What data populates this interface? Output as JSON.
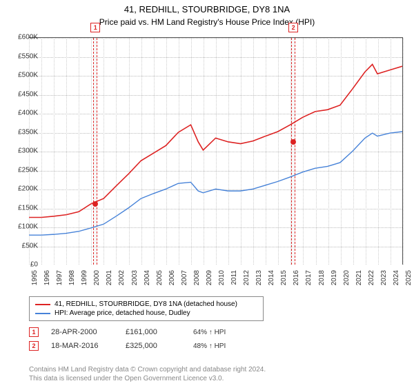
{
  "title_line1": "41, REDHILL, STOURBRIDGE, DY8 1NA",
  "title_line2": "Price paid vs. HM Land Registry's House Price Index (HPI)",
  "chart": {
    "type": "line",
    "y": {
      "min": 0,
      "max": 600000,
      "step": 50000,
      "labels": [
        "£0",
        "£50K",
        "£100K",
        "£150K",
        "£200K",
        "£250K",
        "£300K",
        "£350K",
        "£400K",
        "£450K",
        "£500K",
        "£550K",
        "£600K"
      ]
    },
    "x": {
      "min": 1995,
      "max": 2025,
      "labels": [
        "1995",
        "1996",
        "1997",
        "1998",
        "1999",
        "2000",
        "2001",
        "2002",
        "2003",
        "2004",
        "2005",
        "2006",
        "2007",
        "2008",
        "2009",
        "2010",
        "2011",
        "2012",
        "2013",
        "2014",
        "2015",
        "2016",
        "2017",
        "2018",
        "2019",
        "2020",
        "2021",
        "2022",
        "2023",
        "2024",
        "2025"
      ]
    },
    "series_property": {
      "name": "41, REDHILL, STOURBRIDGE, DY8 1NA (detached house)",
      "color": "#d22",
      "data": [
        [
          1995,
          125000
        ],
        [
          1996,
          125000
        ],
        [
          1997,
          128000
        ],
        [
          1998,
          132000
        ],
        [
          1999,
          140000
        ],
        [
          2000,
          161000
        ],
        [
          2001,
          175000
        ],
        [
          2002,
          208000
        ],
        [
          2003,
          240000
        ],
        [
          2004,
          275000
        ],
        [
          2005,
          295000
        ],
        [
          2006,
          315000
        ],
        [
          2007,
          350000
        ],
        [
          2008,
          370000
        ],
        [
          2008.6,
          325000
        ],
        [
          2009,
          303000
        ],
        [
          2010,
          335000
        ],
        [
          2011,
          325000
        ],
        [
          2012,
          320000
        ],
        [
          2013,
          327000
        ],
        [
          2014,
          340000
        ],
        [
          2015,
          352000
        ],
        [
          2016,
          370000
        ],
        [
          2017,
          390000
        ],
        [
          2018,
          405000
        ],
        [
          2019,
          410000
        ],
        [
          2020,
          422000
        ],
        [
          2021,
          465000
        ],
        [
          2022,
          510000
        ],
        [
          2022.6,
          530000
        ],
        [
          2023,
          505000
        ],
        [
          2024,
          515000
        ],
        [
          2025,
          525000
        ]
      ]
    },
    "series_hpi": {
      "name": "HPI: Average price, detached house, Dudley",
      "color": "#4682d8",
      "data": [
        [
          1995,
          78000
        ],
        [
          1996,
          78000
        ],
        [
          1997,
          80000
        ],
        [
          1998,
          83000
        ],
        [
          1999,
          88000
        ],
        [
          2000,
          97000
        ],
        [
          2001,
          107000
        ],
        [
          2002,
          128000
        ],
        [
          2003,
          150000
        ],
        [
          2004,
          175000
        ],
        [
          2005,
          188000
        ],
        [
          2006,
          200000
        ],
        [
          2007,
          215000
        ],
        [
          2008,
          218000
        ],
        [
          2008.6,
          195000
        ],
        [
          2009,
          190000
        ],
        [
          2010,
          200000
        ],
        [
          2011,
          195000
        ],
        [
          2012,
          195000
        ],
        [
          2013,
          200000
        ],
        [
          2014,
          210000
        ],
        [
          2015,
          220000
        ],
        [
          2016,
          232000
        ],
        [
          2017,
          245000
        ],
        [
          2018,
          255000
        ],
        [
          2019,
          260000
        ],
        [
          2020,
          270000
        ],
        [
          2021,
          300000
        ],
        [
          2022,
          335000
        ],
        [
          2022.6,
          348000
        ],
        [
          2023,
          340000
        ],
        [
          2024,
          348000
        ],
        [
          2025,
          352000
        ]
      ]
    },
    "markers": [
      {
        "n": "1",
        "year": 2000.33,
        "price": 161000
      },
      {
        "n": "2",
        "year": 2016.21,
        "price": 325000
      }
    ],
    "background_color": "#ffffff",
    "grid_color": "#cccccc"
  },
  "legend": {
    "row1": "41, REDHILL, STOURBRIDGE, DY8 1NA (detached house)",
    "row2": "HPI: Average price, detached house, Dudley"
  },
  "sales": [
    {
      "n": "1",
      "date": "28-APR-2000",
      "price": "£161,000",
      "pct": "64% ↑ HPI"
    },
    {
      "n": "2",
      "date": "18-MAR-2016",
      "price": "£325,000",
      "pct": "48% ↑ HPI"
    }
  ],
  "footer_line1": "Contains HM Land Registry data © Crown copyright and database right 2024.",
  "footer_line2": "This data is licensed under the Open Government Licence v3.0."
}
